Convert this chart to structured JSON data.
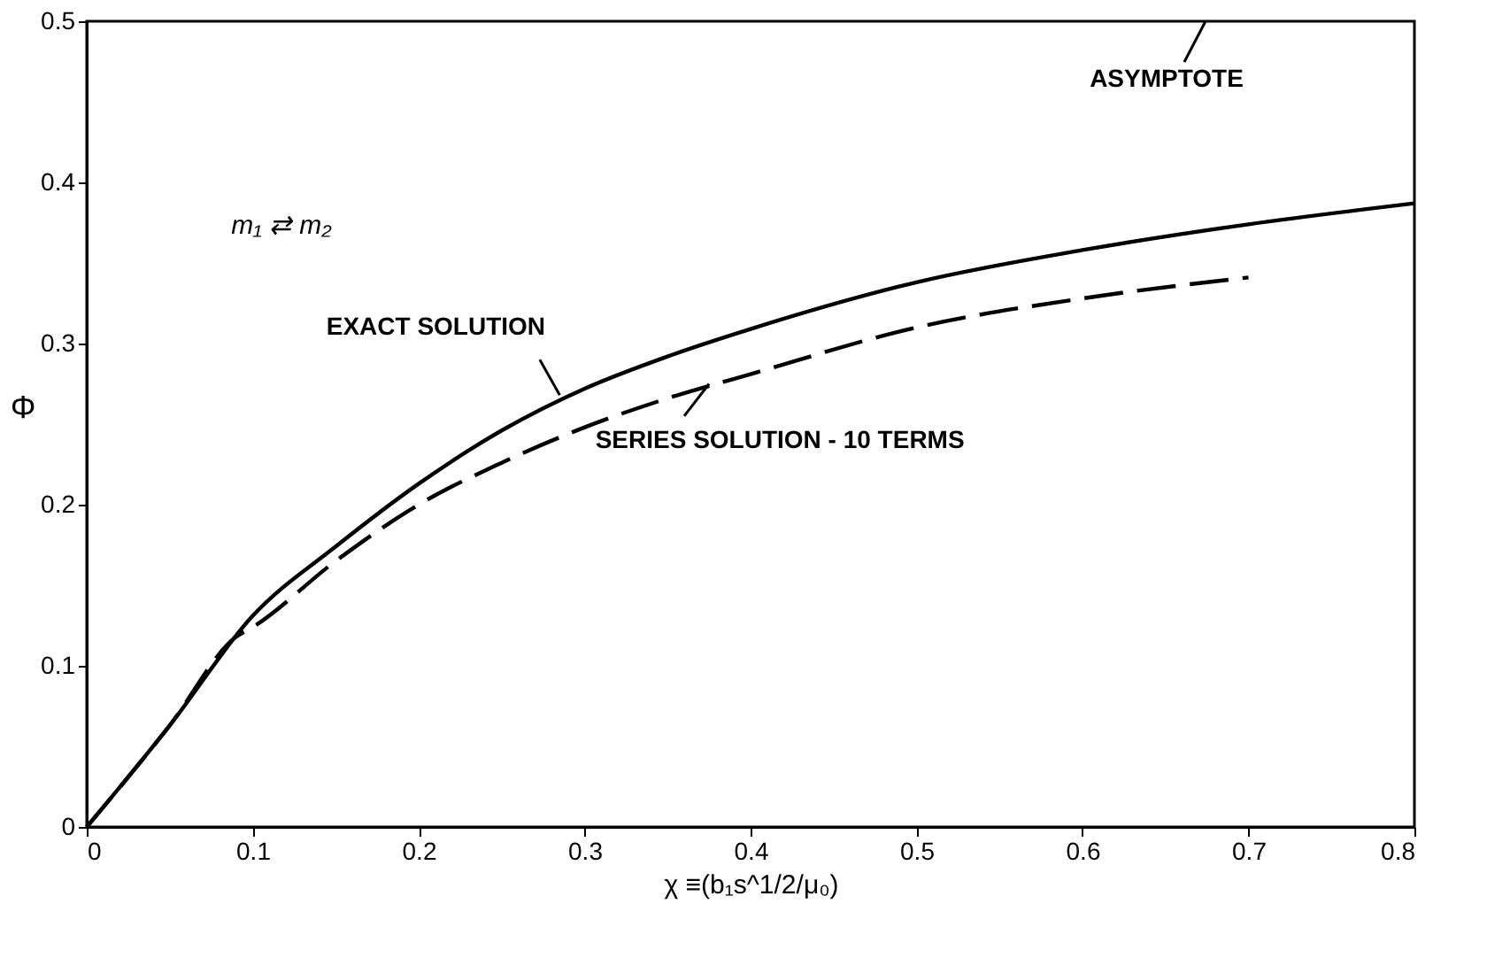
{
  "chart_data": {
    "type": "line",
    "xlabel": "χ ≡(b₁s^1/2/μ₀)",
    "ylabel": "Φ",
    "xlim": [
      0,
      0.8
    ],
    "ylim": [
      0,
      0.5
    ],
    "xticks": [
      0,
      0.1,
      0.2,
      0.3,
      0.4,
      0.5,
      0.6,
      0.7,
      0.8
    ],
    "yticks": [
      0,
      0.1,
      0.2,
      0.3,
      0.4,
      0.5
    ],
    "grid": false,
    "marker": "none",
    "series": [
      {
        "color": "#000000",
        "line_style": "solid",
        "x": [
          0,
          0.05,
          0.1,
          0.15,
          0.2,
          0.25,
          0.3,
          0.35,
          0.4,
          0.5,
          0.6,
          0.7,
          0.8
        ],
        "values": [
          0,
          0.063,
          0.131,
          0.174,
          0.213,
          0.246,
          0.272,
          0.292,
          0.309,
          0.338,
          0.358,
          0.374,
          0.387
        ]
      },
      {
        "color": "#000000",
        "line_style": "dashed",
        "x": [
          0,
          0.05,
          0.09,
          0.1,
          0.15,
          0.2,
          0.25,
          0.3,
          0.35,
          0.4,
          0.5,
          0.6,
          0.7
        ],
        "values": [
          0,
          0.063,
          0.118,
          0.124,
          0.165,
          0.2,
          0.226,
          0.248,
          0.266,
          0.281,
          0.31,
          0.328,
          0.341
        ]
      }
    ],
    "annotations": [
      {
        "text": "EXACT SOLUTION",
        "x": 0.285,
        "y": 0.268
      },
      {
        "text": "SERIES SOLUTION - 10 TERMS",
        "x": 0.375,
        "y": 0.275
      },
      "ASYMPTOTE",
      "m₁ ⇄ m₂"
    ]
  }
}
